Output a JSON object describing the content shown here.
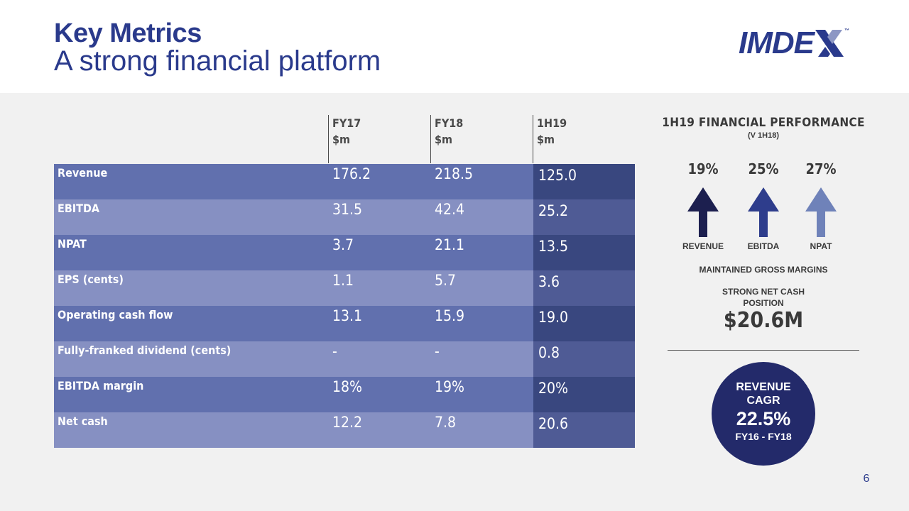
{
  "header": {
    "title": "Key Metrics",
    "subtitle": "A strong financial platform",
    "logo_text": "IMDE",
    "logo_tm": "™"
  },
  "table": {
    "columns": [
      {
        "line1": "FY17",
        "line2": "$m"
      },
      {
        "line1": "FY18",
        "line2": "$m"
      },
      {
        "line1": "1H19",
        "line2": "$m"
      }
    ],
    "rows": [
      {
        "label": "Revenue",
        "fy17": "176.2",
        "fy18": "218.5",
        "h119": "125.0"
      },
      {
        "label": "EBITDA",
        "fy17": "31.5",
        "fy18": "42.4",
        "h119": "25.2"
      },
      {
        "label": "NPAT",
        "fy17": "3.7",
        "fy18": "21.1",
        "h119": "13.5"
      },
      {
        "label": "EPS (cents)",
        "fy17": "1.1",
        "fy18": "5.7",
        "h119": "3.6"
      },
      {
        "label": "Operating cash flow",
        "fy17": "13.1",
        "fy18": "15.9",
        "h119": "19.0"
      },
      {
        "label": "Fully-franked dividend (cents)",
        "fy17": "-",
        "fy18": "-",
        "h119": "0.8"
      },
      {
        "label": "EBITDA margin",
        "fy17": "18%",
        "fy18": "19%",
        "h119": "20%"
      },
      {
        "label": "Net cash",
        "fy17": "12.2",
        "fy18": "7.8",
        "h119": "20.6"
      }
    ]
  },
  "panel": {
    "title": "1H19 FINANCIAL PERFORMANCE",
    "subtitle": "(V 1H18)",
    "metrics": [
      {
        "pct": "19%",
        "label": "REVENUE",
        "color": "#1c1f4f"
      },
      {
        "pct": "25%",
        "label": "EBITDA",
        "color": "#2e3d8c"
      },
      {
        "pct": "27%",
        "label": "NPAT",
        "color": "#6f82b9"
      }
    ],
    "note_margins": "MAINTAINED GROSS MARGINS",
    "note_cash_1": "STRONG NET CASH",
    "note_cash_2": "POSITION",
    "net_cash": "$20.6M",
    "cagr_line1": "REVENUE",
    "cagr_line2": "CAGR",
    "cagr_value": "22.5%",
    "cagr_period": "FY16 - FY18"
  },
  "page_number": "6"
}
